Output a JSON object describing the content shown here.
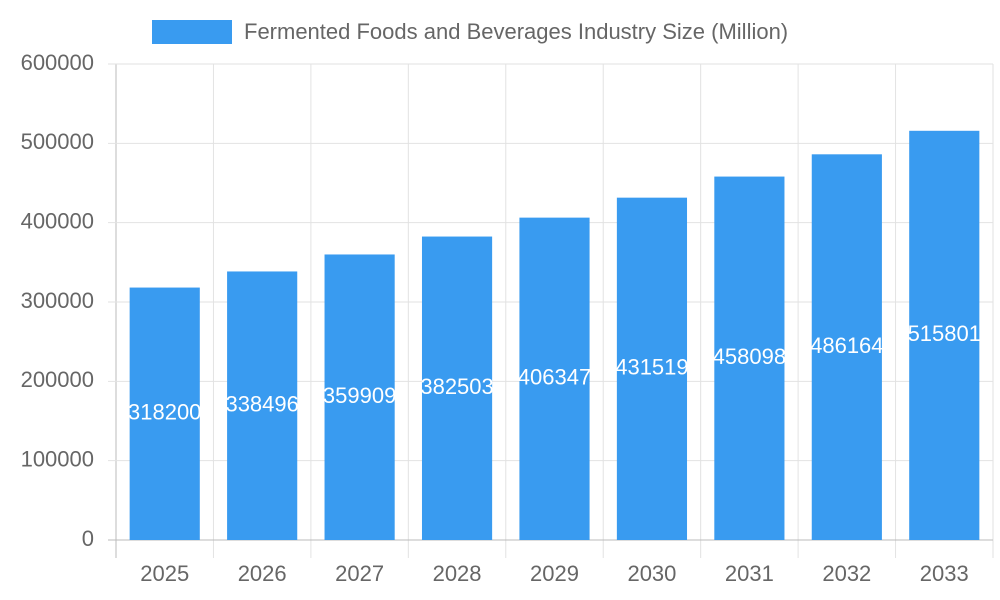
{
  "chart_data": {
    "type": "bar",
    "categories": [
      "2025",
      "2026",
      "2027",
      "2028",
      "2029",
      "2030",
      "2031",
      "2032",
      "2033"
    ],
    "series": [
      {
        "name": "Fermented Foods and Beverages Industry Size (Million)",
        "color": "#399bf0",
        "values": [
          318200,
          338496,
          359909,
          382503,
          406347,
          431519,
          458098,
          486164,
          515801
        ]
      }
    ],
    "ylim": [
      0,
      600000
    ],
    "yticks": [
      0,
      100000,
      200000,
      300000,
      400000,
      500000,
      600000
    ],
    "grid": true,
    "legend": "top",
    "data_labels": true
  }
}
